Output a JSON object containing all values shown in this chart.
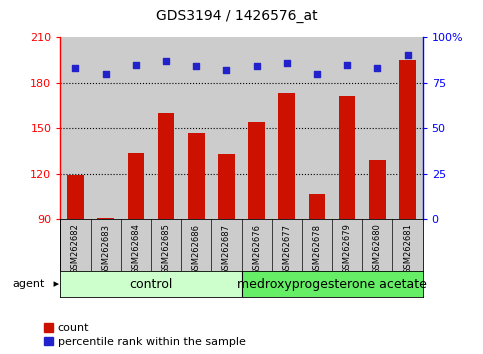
{
  "title": "GDS3194 / 1426576_at",
  "samples": [
    "GSM262682",
    "GSM262683",
    "GSM262684",
    "GSM262685",
    "GSM262686",
    "GSM262687",
    "GSM262676",
    "GSM262677",
    "GSM262678",
    "GSM262679",
    "GSM262680",
    "GSM262681"
  ],
  "counts": [
    119,
    91,
    134,
    160,
    147,
    133,
    154,
    173,
    107,
    171,
    129,
    195
  ],
  "percentiles": [
    83,
    80,
    85,
    87,
    84,
    82,
    84,
    86,
    80,
    85,
    83,
    90
  ],
  "groups": [
    {
      "label": "control",
      "color": "#ccffcc",
      "start": 0,
      "end": 6
    },
    {
      "label": "medroxyprogesterone acetate",
      "color": "#66ee66",
      "start": 6,
      "end": 12
    }
  ],
  "ymin": 90,
  "ymax": 210,
  "yticks_left": [
    90,
    120,
    150,
    180,
    210
  ],
  "yticks_right": [
    0,
    25,
    50,
    75,
    100
  ],
  "bar_color": "#cc1100",
  "dot_color": "#2222cc",
  "plot_bg_color": "#cccccc",
  "sample_bg_color": "#cccccc",
  "legend_count_label": "count",
  "legend_pct_label": "percentile rank within the sample",
  "agent_label": "agent",
  "title_fontsize": 10,
  "tick_fontsize": 8,
  "sample_fontsize": 6,
  "group_fontsize": 9,
  "legend_fontsize": 8
}
